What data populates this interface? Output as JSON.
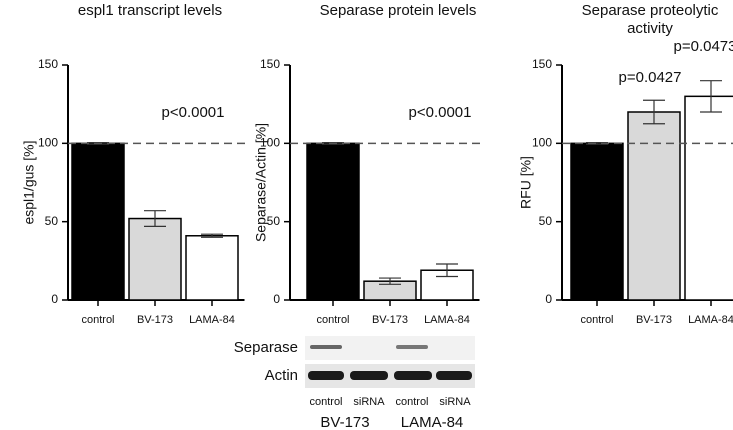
{
  "chart_data": [
    {
      "type": "bar",
      "title": "espl1 transcript levels",
      "ylabel": "espl1/gus [%]",
      "categories": [
        "control",
        "BV-173",
        "LAMA-84"
      ],
      "values": [
        100,
        52,
        41
      ],
      "errors": [
        0.5,
        5,
        1
      ],
      "colors": [
        "#000000",
        "#d9d9d9",
        "#ffffff"
      ],
      "ylim": [
        0,
        150
      ],
      "yticks": [
        0,
        50,
        100,
        150
      ],
      "hline": 100,
      "annotations": [
        "p<0.0001"
      ]
    },
    {
      "type": "bar",
      "title": "Separase protein levels",
      "ylabel": "Separase/Actin [%]",
      "categories": [
        "control",
        "BV-173",
        "LAMA-84"
      ],
      "values": [
        100,
        12,
        19
      ],
      "errors": [
        0.5,
        2,
        4
      ],
      "colors": [
        "#000000",
        "#d9d9d9",
        "#ffffff"
      ],
      "ylim": [
        0,
        150
      ],
      "yticks": [
        0,
        50,
        100,
        150
      ],
      "hline": 100,
      "annotations": [
        "p<0.0001"
      ]
    },
    {
      "type": "bar",
      "title": "Separase proteolytic activity",
      "ylabel": "RFU [%]",
      "categories": [
        "control",
        "BV-173",
        "LAMA-84"
      ],
      "values": [
        100,
        120,
        130
      ],
      "errors": [
        0.5,
        7.5,
        10
      ],
      "colors": [
        "#000000",
        "#d9d9d9",
        "#ffffff"
      ],
      "ylim": [
        0,
        150
      ],
      "yticks": [
        0,
        50,
        100,
        150
      ],
      "hline": 100,
      "annotations": [
        "p=0.0427",
        "p=0.0473"
      ]
    }
  ],
  "blot": {
    "rows": [
      "Separase",
      "Actin"
    ],
    "lanes": [
      "control",
      "siRNA",
      "control",
      "siRNA"
    ],
    "groups": [
      "BV-173",
      "LAMA-84"
    ]
  }
}
